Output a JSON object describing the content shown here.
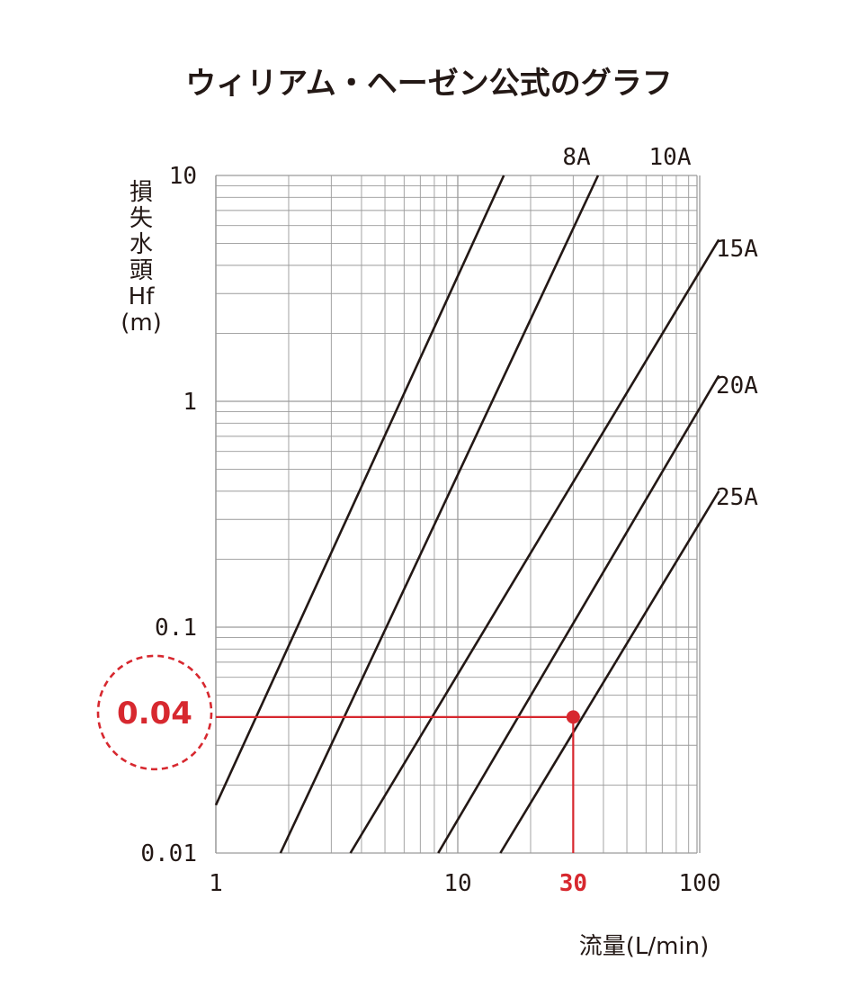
{
  "title": "ウィリアム・ヘーゼン公式のグラフ",
  "chart_data": {
    "type": "line",
    "title": "ウィリアム・ヘーゼン公式のグラフ",
    "xlabel": "流量(L/min)",
    "ylabel_lines": [
      "損",
      "失",
      "水",
      "頭",
      "Hf",
      "(m)"
    ],
    "x_scale": "log",
    "y_scale": "log",
    "xlim": [
      1,
      120
    ],
    "ylim": [
      0.01,
      10
    ],
    "x_ticks": [
      {
        "value": 1,
        "label": "1"
      },
      {
        "value": 10,
        "label": "10"
      },
      {
        "value": 100,
        "label": "100"
      }
    ],
    "y_ticks": [
      {
        "value": 10,
        "label": "10"
      },
      {
        "value": 1,
        "label": "1"
      },
      {
        "value": 0.1,
        "label": "0.1"
      },
      {
        "value": 0.01,
        "label": "0.01"
      }
    ],
    "grid": true,
    "series": [
      {
        "name": "8A",
        "x": [
          1,
          15.5
        ],
        "y": [
          0.0163,
          10
        ]
      },
      {
        "name": "10A",
        "x": [
          1.85,
          38
        ],
        "y": [
          0.01,
          10
        ]
      },
      {
        "name": "15A",
        "x": [
          3.6,
          120
        ],
        "y": [
          0.01,
          5.2
        ]
      },
      {
        "name": "20A",
        "x": [
          8.3,
          120
        ],
        "y": [
          0.01,
          1.3
        ]
      },
      {
        "name": "25A",
        "x": [
          15,
          120
        ],
        "y": [
          0.01,
          0.4
        ]
      }
    ],
    "highlight": {
      "x": 30,
      "y": 0.04,
      "x_label": "30",
      "y_label": "0.04",
      "color": "#d7282f"
    },
    "colors": {
      "line": "#231815",
      "grid": "#9a9a9a",
      "highlight": "#d7282f"
    }
  }
}
